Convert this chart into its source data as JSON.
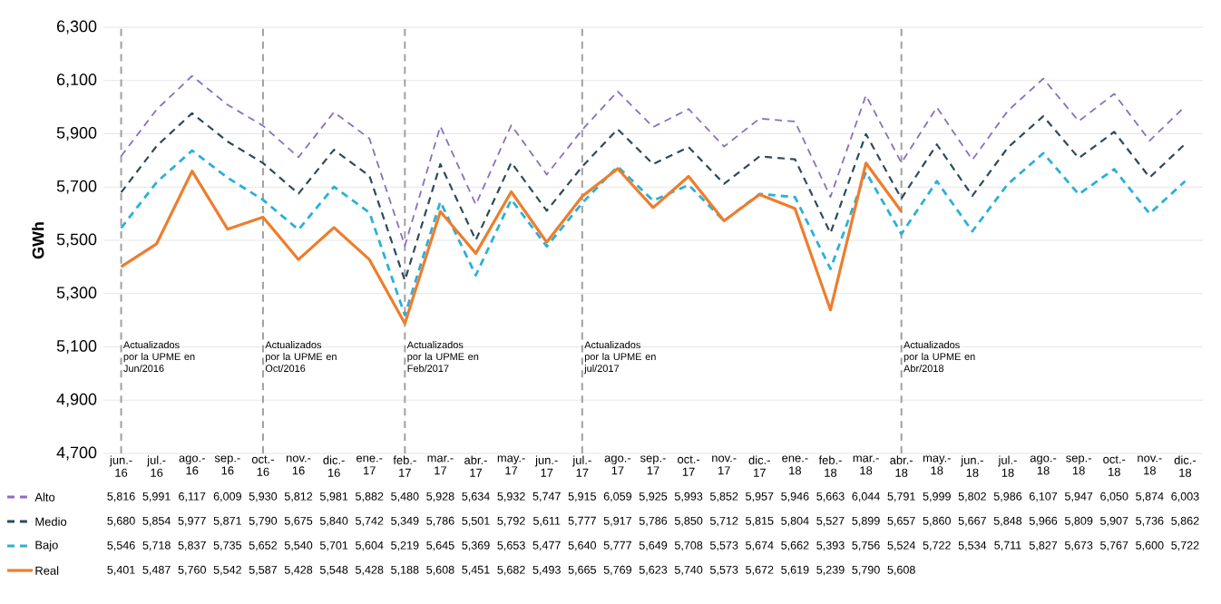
{
  "chart_data": {
    "type": "line",
    "ylabel": "GWh",
    "categories": [
      "jun.- 16",
      "jul.- 16",
      "ago.- 16",
      "sep.- 16",
      "oct.- 16",
      "nov.- 16",
      "dic.- 16",
      "ene.- 17",
      "feb.- 17",
      "mar.- 17",
      "abr.- 17",
      "may.- 17",
      "jun.- 17",
      "jul.- 17",
      "ago.- 17",
      "sep.- 17",
      "oct.- 17",
      "nov.- 17",
      "dic.- 17",
      "ene.- 18",
      "feb.- 18",
      "mar.- 18",
      "abr.- 18",
      "may.- 18",
      "jun.- 18",
      "jul.- 18",
      "ago.- 18",
      "sep.- 18",
      "oct.- 18",
      "nov.- 18",
      "dic.- 18"
    ],
    "series": [
      {
        "name": "Alto",
        "color": "#8a6fbf",
        "line_style": "dashed",
        "values": [
          5816,
          5991,
          6117,
          6009,
          5930,
          5812,
          5981,
          5882,
          5480,
          5928,
          5634,
          5932,
          5747,
          5915,
          6059,
          5925,
          5993,
          5852,
          5957,
          5946,
          5663,
          6044,
          5791,
          5999,
          5802,
          5986,
          6107,
          5947,
          6050,
          5874,
          6003
        ],
        "value_labels": [
          "5,816",
          "5,991",
          "6,117",
          "6,009",
          "5,930",
          "5,812",
          "5,981",
          "5,882",
          "5,480",
          "5,928",
          "5,634",
          "5,932",
          "5,747",
          "5,915",
          "6,059",
          "5,925",
          "5,993",
          "5,852",
          "5,957",
          "5,946",
          "5,663",
          "6,044",
          "5,791",
          "5,999",
          "5,802",
          "5,986",
          "6,107",
          "5,947",
          "6,050",
          "5,874",
          "6,003"
        ]
      },
      {
        "name": "Medio",
        "color": "#2e4a5a",
        "line_style": "dashed",
        "values": [
          5680,
          5854,
          5977,
          5871,
          5790,
          5675,
          5840,
          5742,
          5349,
          5786,
          5501,
          5792,
          5611,
          5777,
          5917,
          5786,
          5850,
          5712,
          5815,
          5804,
          5527,
          5899,
          5657,
          5860,
          5667,
          5848,
          5966,
          5809,
          5907,
          5736,
          5862
        ],
        "value_labels": [
          "5,680",
          "5,854",
          "5,977",
          "5,871",
          "5,790",
          "5,675",
          "5,840",
          "5,742",
          "5,349",
          "5,786",
          "5,501",
          "5,792",
          "5,611",
          "5,777",
          "5,917",
          "5,786",
          "5,850",
          "5,712",
          "5,815",
          "5,804",
          "5,527",
          "5,899",
          "5,657",
          "5,860",
          "5,667",
          "5,848",
          "5,966",
          "5,809",
          "5,907",
          "5,736",
          "5,862"
        ]
      },
      {
        "name": "Bajo",
        "color": "#2ab0d9",
        "line_style": "dashed",
        "values": [
          5546,
          5718,
          5837,
          5735,
          5652,
          5540,
          5701,
          5604,
          5219,
          5645,
          5369,
          5653,
          5477,
          5640,
          5777,
          5649,
          5708,
          5573,
          5674,
          5662,
          5393,
          5756,
          5524,
          5722,
          5534,
          5711,
          5827,
          5673,
          5767,
          5600,
          5722
        ],
        "value_labels": [
          "5,546",
          "5,718",
          "5,837",
          "5,735",
          "5,652",
          "5,540",
          "5,701",
          "5,604",
          "5,219",
          "5,645",
          "5,369",
          "5,653",
          "5,477",
          "5,640",
          "5,777",
          "5,649",
          "5,708",
          "5,573",
          "5,674",
          "5,662",
          "5,393",
          "5,756",
          "5,524",
          "5,722",
          "5,534",
          "5,711",
          "5,827",
          "5,673",
          "5,767",
          "5,600",
          "5,722"
        ]
      },
      {
        "name": "Real",
        "color": "#ee7d2d",
        "line_style": "solid",
        "values": [
          5401,
          5487,
          5760,
          5542,
          5587,
          5428,
          5548,
          5428,
          5188,
          5608,
          5451,
          5682,
          5493,
          5665,
          5769,
          5623,
          5740,
          5573,
          5672,
          5619,
          5239,
          5790,
          5608,
          null,
          null,
          null,
          null,
          null,
          null,
          null,
          null
        ],
        "value_labels": [
          "5,401",
          "5,487",
          "5,760",
          "5,542",
          "5,587",
          "5,428",
          "5,548",
          "5,428",
          "5,188",
          "5,608",
          "5,451",
          "5,682",
          "5,493",
          "5,665",
          "5,769",
          "5,623",
          "5,740",
          "5,573",
          "5,672",
          "5,619",
          "5,239",
          "5,790",
          "5,608",
          null,
          null,
          null,
          null,
          null,
          null,
          null,
          null
        ]
      }
    ],
    "ylim": [
      4700,
      6300
    ],
    "yticks": [
      {
        "value": 4700,
        "label": "4,700"
      },
      {
        "value": 4900,
        "label": "4,900"
      },
      {
        "value": 5100,
        "label": "5,100"
      },
      {
        "value": 5300,
        "label": "5,300"
      },
      {
        "value": 5500,
        "label": "5,500"
      },
      {
        "value": 5700,
        "label": "5,700"
      },
      {
        "value": 5900,
        "label": "5,900"
      },
      {
        "value": 6100,
        "label": "6,100"
      },
      {
        "value": 6300,
        "label": "6,300"
      }
    ],
    "grid": "y",
    "legend": "bottom",
    "ref_lines": [
      {
        "axis": "x",
        "value": "jun.- 16",
        "label": "Actualizados por la UPME en Jun/2016",
        "color": "#a0a0a0",
        "line_style": "dashed"
      },
      {
        "axis": "x",
        "value": "oct.- 16",
        "label": "Actualizados por la UPME en Oct/2016",
        "color": "#a0a0a0",
        "line_style": "dashed"
      },
      {
        "axis": "x",
        "value": "feb.- 17",
        "label": "Actualizados por la UPME en Feb/2017",
        "color": "#a0a0a0",
        "line_style": "dashed"
      },
      {
        "axis": "x",
        "value": "jul.- 17",
        "label": "Actualizados por la UPME en jul/2017",
        "color": "#a0a0a0",
        "line_style": "dashed"
      },
      {
        "axis": "x",
        "value": "abr.- 18",
        "label": "Actualizados por la UPME en Abr/2018",
        "color": "#a0a0a0",
        "line_style": "dashed"
      }
    ]
  }
}
